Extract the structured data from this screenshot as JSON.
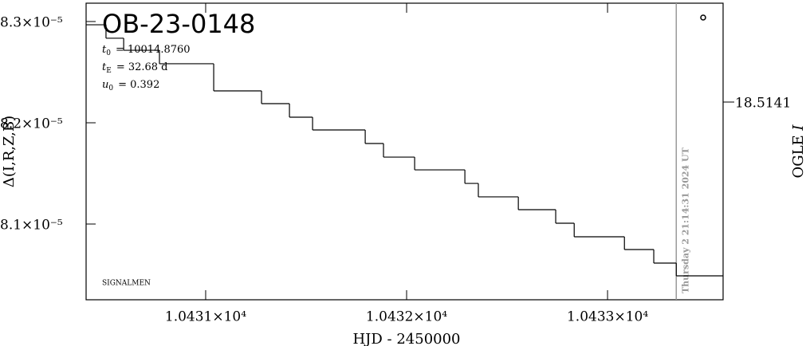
{
  "chart_data": {
    "type": "step",
    "title": "OB-23-0148",
    "parameters": [
      {
        "name": "t",
        "sub": "0",
        "text": "= 10014.8760"
      },
      {
        "name": "t",
        "sub": "E",
        "text": "= 32.68  d"
      },
      {
        "name": "u",
        "sub": "0",
        "text": "= 0.392"
      }
    ],
    "source_label": "SIGNALMEN",
    "timestamp": "Thursday  2 21:14:31 2024 UT",
    "marker_x": 10433.342,
    "x_label": "HJD - 2450000",
    "y_label": "Δ(I,R,Z,B)",
    "y2_label": "OGLE",
    "y2_label_band": "I",
    "color": "#000000",
    "marker_color": "#999999",
    "x": [
      10430.405,
      10430.504,
      10430.592,
      10430.77,
      10431.04,
      10431.278,
      10431.417,
      10431.532,
      10431.794,
      10431.885,
      10432.04,
      10432.29,
      10432.357,
      10432.556,
      10432.742,
      10432.834,
      10433.084,
      10433.23,
      10433.342
    ],
    "values": [
      8.2968e-05,
      8.2835e-05,
      8.2716e-05,
      8.2583e-05,
      8.2315e-05,
      8.2189e-05,
      8.2055e-05,
      8.1929e-05,
      8.1795e-05,
      8.1661e-05,
      8.1535e-05,
      8.1401e-05,
      8.1268e-05,
      8.1142e-05,
      8.1008e-05,
      8.0874e-05,
      8.0748e-05,
      8.0614e-05,
      8.0488e-05
    ],
    "xlim": [
      10430.405,
      10433.575
    ],
    "ylim": [
      8.0252e-05,
      8.3181e-05
    ],
    "y2lim": [
      18.5145,
      18.5139
    ],
    "xticks": [
      {
        "value": 10431,
        "label": "1.0431×10⁴"
      },
      {
        "value": 10432,
        "label": "1.0432×10⁴"
      },
      {
        "value": 10433,
        "label": "1.0433×10⁴"
      }
    ],
    "yticks": [
      {
        "value": 8.1e-05,
        "label": "8.1×10⁻⁵"
      },
      {
        "value": 8.2e-05,
        "label": "8.2×10⁻⁵"
      },
      {
        "value": 8.3e-05,
        "label": "8.3×10⁻⁵"
      }
    ],
    "y2ticks": [
      18.5141
    ]
  }
}
